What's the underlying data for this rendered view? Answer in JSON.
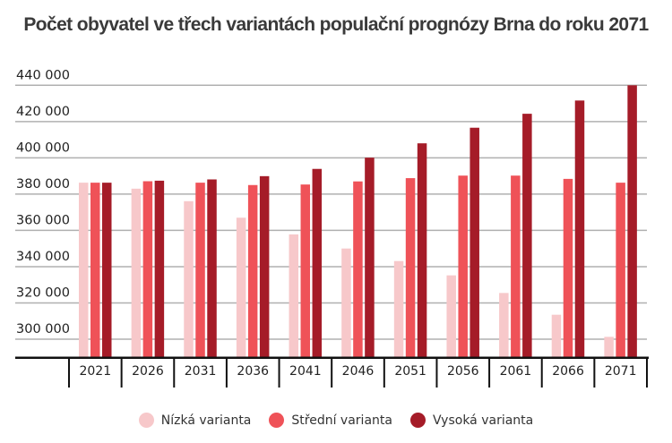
{
  "chart_data": {
    "type": "bar",
    "title": "Počet obyvatel ve třech variantách populační prognózy Brna do roku 2071",
    "xlabel": "",
    "ylabel": "",
    "ylim": [
      290000,
      440000
    ],
    "yticks": [
      300000,
      320000,
      340000,
      360000,
      380000,
      400000,
      420000,
      440000
    ],
    "ytick_labels": [
      "300 000",
      "320 000",
      "340 000",
      "360 000",
      "380 000",
      "400 000",
      "420 000",
      "440 000"
    ],
    "categories": [
      "2021",
      "2026",
      "2031",
      "2036",
      "2041",
      "2046",
      "2051",
      "2056",
      "2061",
      "2066",
      "2071"
    ],
    "grid": true,
    "legend_position": "bottom",
    "series": [
      {
        "name": "Nízká varianta",
        "color": "#f7c8ca",
        "values": [
          386300,
          383000,
          376100,
          367000,
          357800,
          350000,
          343100,
          335200,
          325500,
          313500,
          301300
        ]
      },
      {
        "name": "Střední varianta",
        "color": "#ef5258",
        "values": [
          386300,
          387100,
          386300,
          385000,
          385300,
          387000,
          388800,
          390200,
          390200,
          388400,
          386300
        ]
      },
      {
        "name": "Vysoká varianta",
        "color": "#a51c28",
        "values": [
          386300,
          387400,
          388100,
          389900,
          393900,
          400100,
          408000,
          416600,
          424300,
          431600,
          440000
        ]
      }
    ]
  }
}
